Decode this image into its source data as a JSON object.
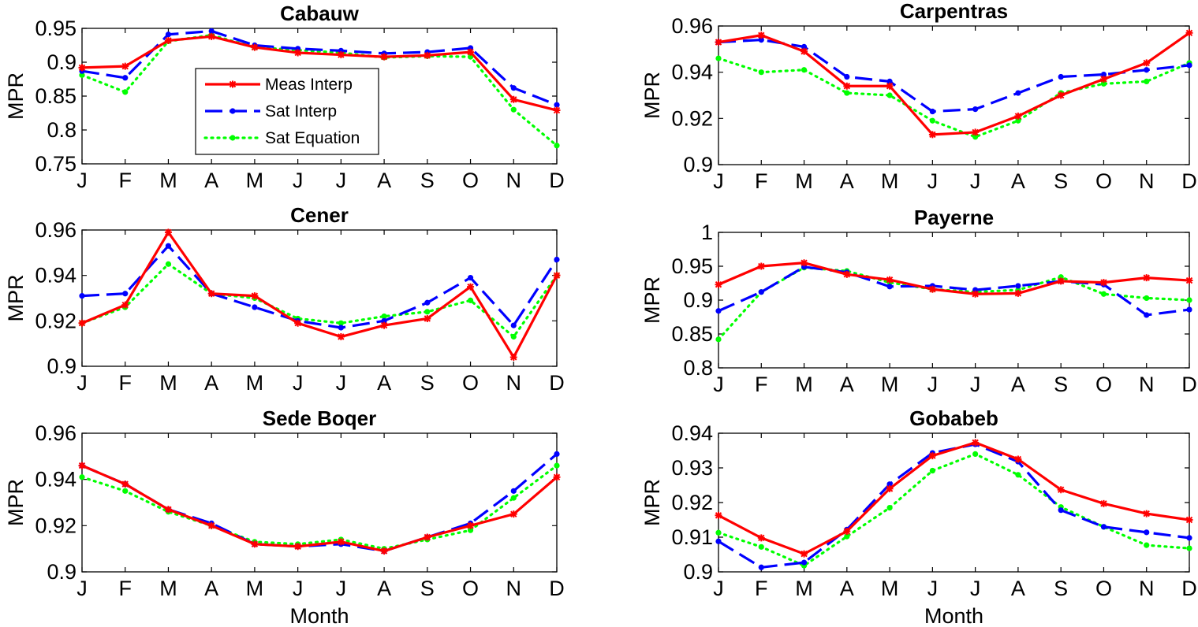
{
  "chart_data": [
    {
      "type": "line",
      "title": "Cabauw",
      "ylabel": "MPR",
      "xlabel": "",
      "categories": [
        "J",
        "F",
        "M",
        "A",
        "M",
        "J",
        "J",
        "A",
        "S",
        "O",
        "N",
        "D"
      ],
      "ylim": [
        0.75,
        0.95
      ],
      "yticks": [
        "0.75",
        "0.8",
        "0.85",
        "0.9",
        "0.95"
      ],
      "series": [
        {
          "name": "Meas Interp",
          "values": [
            0.892,
            0.894,
            0.932,
            0.938,
            0.922,
            0.914,
            0.911,
            0.908,
            0.91,
            0.915,
            0.845,
            0.829
          ]
        },
        {
          "name": "Sat Interp",
          "values": [
            0.887,
            0.877,
            0.941,
            0.946,
            0.925,
            0.92,
            0.917,
            0.913,
            0.915,
            0.921,
            0.862,
            0.837
          ]
        },
        {
          "name": "Sat Equation",
          "values": [
            0.881,
            0.856,
            0.931,
            0.94,
            0.922,
            0.918,
            0.914,
            0.907,
            0.909,
            0.908,
            0.83,
            0.777
          ]
        }
      ],
      "legend": {
        "position": "inside-left",
        "entries": [
          "Meas Interp",
          "Sat Interp",
          "Sat Equation"
        ]
      }
    },
    {
      "type": "line",
      "title": "Carpentras",
      "ylabel": "MPR",
      "xlabel": "",
      "categories": [
        "J",
        "F",
        "M",
        "A",
        "M",
        "J",
        "J",
        "A",
        "S",
        "O",
        "N",
        "D"
      ],
      "ylim": [
        0.9,
        0.96
      ],
      "yticks": [
        "0.9",
        "0.92",
        "0.94",
        "0.96"
      ],
      "series": [
        {
          "name": "Meas Interp",
          "values": [
            0.953,
            0.956,
            0.949,
            0.934,
            0.934,
            0.913,
            0.914,
            0.921,
            0.93,
            0.937,
            0.944,
            0.957
          ]
        },
        {
          "name": "Sat Interp",
          "values": [
            0.953,
            0.954,
            0.951,
            0.938,
            0.936,
            0.923,
            0.924,
            0.931,
            0.938,
            0.939,
            0.941,
            0.943
          ]
        },
        {
          "name": "Sat Equation",
          "values": [
            0.946,
            0.94,
            0.941,
            0.931,
            0.93,
            0.919,
            0.912,
            0.919,
            0.931,
            0.935,
            0.936,
            0.944
          ]
        }
      ]
    },
    {
      "type": "line",
      "title": "Cener",
      "ylabel": "MPR",
      "xlabel": "",
      "categories": [
        "J",
        "F",
        "M",
        "A",
        "M",
        "J",
        "J",
        "A",
        "S",
        "O",
        "N",
        "D"
      ],
      "ylim": [
        0.9,
        0.96
      ],
      "yticks": [
        "0.9",
        "0.92",
        "0.94",
        "0.96"
      ],
      "series": [
        {
          "name": "Meas Interp",
          "values": [
            0.919,
            0.927,
            0.959,
            0.932,
            0.931,
            0.919,
            0.913,
            0.918,
            0.921,
            0.935,
            0.904,
            0.94
          ]
        },
        {
          "name": "Sat Interp",
          "values": [
            0.931,
            0.932,
            0.953,
            0.932,
            0.926,
            0.92,
            0.917,
            0.92,
            0.928,
            0.939,
            0.918,
            0.947
          ]
        },
        {
          "name": "Sat Equation",
          "values": [
            0.919,
            0.926,
            0.945,
            0.932,
            0.93,
            0.921,
            0.919,
            0.922,
            0.924,
            0.929,
            0.913,
            0.94
          ]
        }
      ]
    },
    {
      "type": "line",
      "title": "Payerne",
      "ylabel": "MPR",
      "xlabel": "",
      "categories": [
        "J",
        "F",
        "M",
        "A",
        "M",
        "J",
        "J",
        "A",
        "S",
        "O",
        "N",
        "D"
      ],
      "ylim": [
        0.8,
        1.0
      ],
      "yticks": [
        "0.8",
        "0.85",
        "0.9",
        "0.95",
        "1"
      ],
      "series": [
        {
          "name": "Meas Interp",
          "values": [
            0.923,
            0.95,
            0.955,
            0.938,
            0.93,
            0.916,
            0.909,
            0.91,
            0.928,
            0.926,
            0.933,
            0.929
          ]
        },
        {
          "name": "Sat Interp",
          "values": [
            0.884,
            0.912,
            0.949,
            0.941,
            0.92,
            0.921,
            0.915,
            0.921,
            0.928,
            0.923,
            0.878,
            0.886
          ]
        },
        {
          "name": "Sat Equation",
          "values": [
            0.842,
            0.912,
            0.948,
            0.943,
            0.926,
            0.916,
            0.912,
            0.915,
            0.934,
            0.909,
            0.903,
            0.9
          ]
        }
      ]
    },
    {
      "type": "line",
      "title": "Sede Boqer",
      "ylabel": "MPR",
      "xlabel": "Month",
      "categories": [
        "J",
        "F",
        "M",
        "A",
        "M",
        "J",
        "J",
        "A",
        "S",
        "O",
        "N",
        "D"
      ],
      "ylim": [
        0.9,
        0.96
      ],
      "yticks": [
        "0.9",
        "0.92",
        "0.94",
        "0.96"
      ],
      "series": [
        {
          "name": "Meas Interp",
          "values": [
            0.946,
            0.938,
            0.927,
            0.92,
            0.912,
            0.911,
            0.913,
            0.909,
            0.915,
            0.92,
            0.925,
            0.941
          ]
        },
        {
          "name": "Sat Interp",
          "values": [
            0.946,
            0.938,
            0.927,
            0.921,
            0.912,
            0.911,
            0.912,
            0.909,
            0.915,
            0.921,
            0.935,
            0.951
          ]
        },
        {
          "name": "Sat Equation",
          "values": [
            0.941,
            0.935,
            0.926,
            0.92,
            0.913,
            0.912,
            0.914,
            0.91,
            0.914,
            0.918,
            0.932,
            0.946
          ]
        }
      ]
    },
    {
      "type": "line",
      "title": "Gobabeb",
      "ylabel": "MPR",
      "xlabel": "Month",
      "categories": [
        "J",
        "F",
        "M",
        "A",
        "M",
        "J",
        "J",
        "A",
        "S",
        "O",
        "N",
        "D"
      ],
      "ylim": [
        0.9,
        0.94
      ],
      "yticks": [
        "0.9",
        "0.91",
        "0.92",
        "0.93",
        "0.94"
      ],
      "series": [
        {
          "name": "Meas Interp",
          "values": [
            0.9163,
            0.9098,
            0.9052,
            0.9117,
            0.924,
            0.9335,
            0.9373,
            0.9325,
            0.9237,
            0.9197,
            0.9168,
            0.915
          ]
        },
        {
          "name": "Sat Interp",
          "values": [
            0.9088,
            0.9013,
            0.9027,
            0.9122,
            0.9253,
            0.9343,
            0.9368,
            0.9318,
            0.9178,
            0.913,
            0.9114,
            0.9098
          ]
        },
        {
          "name": "Sat Equation",
          "values": [
            0.9113,
            0.9072,
            0.9018,
            0.9102,
            0.9185,
            0.9292,
            0.934,
            0.928,
            0.9187,
            0.913,
            0.9077,
            0.9068
          ]
        }
      ]
    }
  ],
  "styles": {
    "Meas Interp": {
      "color": "#ff0000",
      "dash": "",
      "marker": "star"
    },
    "Sat Interp": {
      "color": "#0000ff",
      "dash": "22,9",
      "marker": "dot"
    },
    "Sat Equation": {
      "color": "#00ff00",
      "dash": "2,6",
      "marker": "dot"
    }
  }
}
